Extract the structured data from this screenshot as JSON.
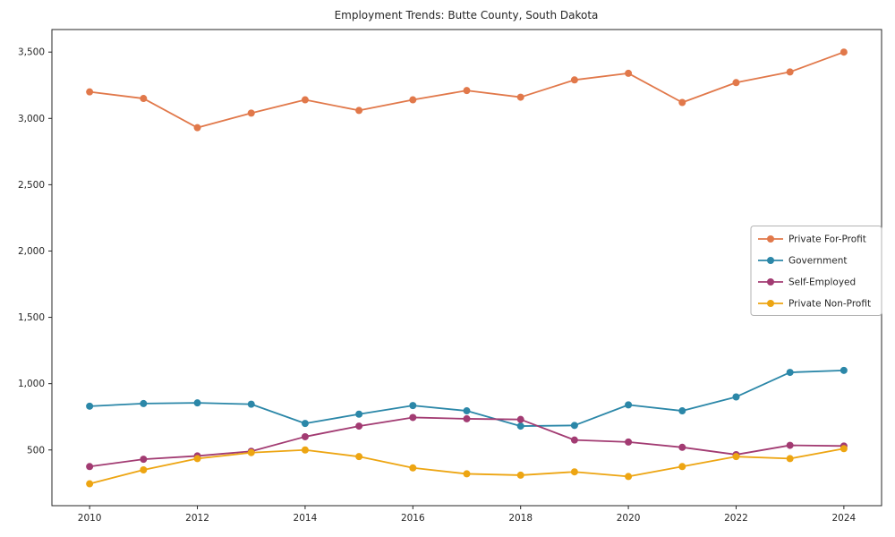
{
  "chart_data": {
    "type": "line",
    "title": "Employment Trends: Butte County, South Dakota",
    "xlabel": "",
    "ylabel": "",
    "x": [
      2010,
      2011,
      2012,
      2013,
      2014,
      2015,
      2016,
      2017,
      2018,
      2019,
      2020,
      2021,
      2022,
      2023,
      2024
    ],
    "series": [
      {
        "name": "Private For-Profit",
        "color": "#e1784a",
        "values": [
          3200,
          3150,
          2930,
          3040,
          3140,
          3060,
          3140,
          3210,
          3160,
          3290,
          3340,
          3120,
          3270,
          3350,
          3500
        ]
      },
      {
        "name": "Government",
        "color": "#2b87a8",
        "values": [
          830,
          850,
          855,
          845,
          700,
          770,
          835,
          795,
          680,
          685,
          840,
          795,
          900,
          1085,
          1100
        ]
      },
      {
        "name": "Self-Employed",
        "color": "#a23b72",
        "values": [
          375,
          430,
          455,
          490,
          600,
          680,
          745,
          735,
          730,
          575,
          560,
          520,
          465,
          535,
          530
        ]
      },
      {
        "name": "Private Non-Profit",
        "color": "#eda512",
        "values": [
          245,
          350,
          435,
          480,
          500,
          450,
          365,
          320,
          310,
          335,
          300,
          375,
          450,
          435,
          510
        ]
      }
    ],
    "xticks": [
      2010,
      2012,
      2014,
      2016,
      2018,
      2020,
      2022,
      2024
    ],
    "ytick_labels": [
      "500",
      "1,000",
      "1,500",
      "2,000",
      "2,500",
      "3,000",
      "3,500"
    ],
    "yticks": [
      500,
      1000,
      1500,
      2000,
      2500,
      3000,
      3500
    ],
    "xlim": [
      2009.3,
      2024.7
    ],
    "ylim": [
      80,
      3670
    ],
    "grid": false,
    "legend_position": "center right",
    "marker": "circle",
    "axis_color": "#262626"
  }
}
